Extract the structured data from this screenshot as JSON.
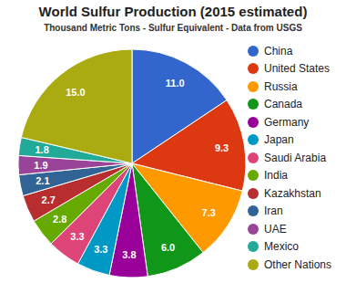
{
  "chart_data": {
    "type": "pie",
    "title": "World Sulfur Production (2015 estimated)",
    "subtitle": "Thousand Metric Tons  -  Sulfur Equivalent  -  Data from USGS",
    "categories": [
      "China",
      "United States",
      "Russia",
      "Canada",
      "Germany",
      "Japan",
      "Saudi Arabia",
      "India",
      "Kazakhstan",
      "Iran",
      "UAE",
      "Mexico",
      "Other Nations"
    ],
    "values": [
      11.0,
      9.3,
      7.3,
      6.0,
      3.8,
      3.3,
      3.3,
      2.8,
      2.7,
      2.1,
      1.9,
      1.8,
      15.0
    ],
    "value_labels": [
      "11.0",
      "9.3",
      "7.3",
      "6.0",
      "3.8",
      "3.3",
      "3.3",
      "2.8",
      "2.7",
      "2.1",
      "1.9",
      "1.8",
      "15.0"
    ],
    "colors": [
      "#3366cc",
      "#dc3912",
      "#ff9900",
      "#109618",
      "#990099",
      "#0099c6",
      "#dd4477",
      "#66aa00",
      "#b82e2e",
      "#316395",
      "#994499",
      "#22aa99",
      "#aaaa11"
    ],
    "data_labels": true,
    "legend": "right"
  }
}
